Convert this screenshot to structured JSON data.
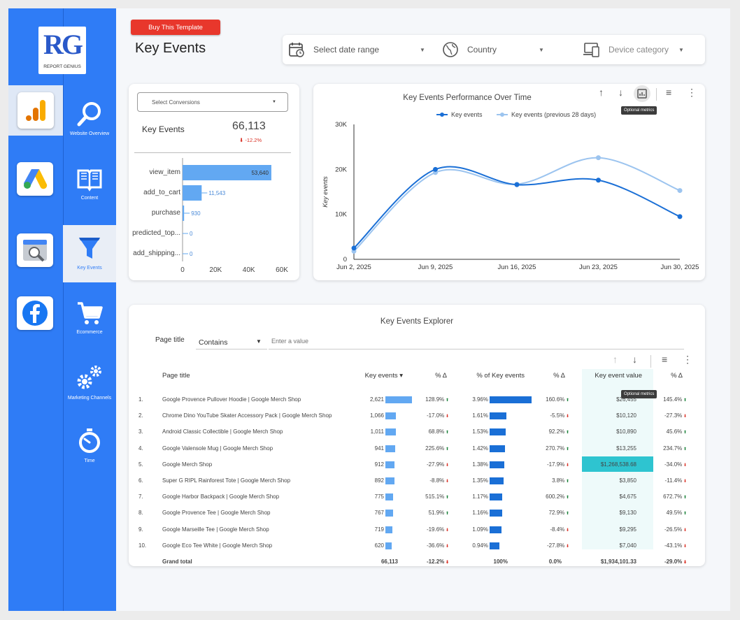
{
  "brand": {
    "logo_text": "RG",
    "name": "REPORT GENIUS"
  },
  "apps": [
    {
      "name": "google-analytics"
    },
    {
      "name": "google-ads"
    },
    {
      "name": "google-search-console"
    },
    {
      "name": "facebook"
    }
  ],
  "nav": [
    {
      "label": "Website Overview",
      "icon": "magnifier-icon"
    },
    {
      "label": "Content",
      "icon": "book-icon"
    },
    {
      "label": "Key Events",
      "icon": "funnel-icon"
    },
    {
      "label": "Ecommerce",
      "icon": "cart-icon"
    },
    {
      "label": "Marketing Channels",
      "icon": "gears-icon"
    },
    {
      "label": "Time",
      "icon": "stopwatch-icon"
    }
  ],
  "header": {
    "buy_label": "Buy This Template",
    "title": "Key Events",
    "filters": {
      "date": "Select date range",
      "country": "Country",
      "device": "Device category"
    }
  },
  "key_events_card": {
    "select_label": "Select Conversions",
    "metric_label": "Key Events",
    "metric_value": "66,113",
    "metric_delta": "-12.2%"
  },
  "line_chart_meta": {
    "title": "Key Events Performance Over Time",
    "tooltip": "Optional metrics"
  },
  "chart_data": [
    {
      "type": "bar",
      "orientation": "horizontal",
      "categories": [
        "view_item",
        "add_to_cart",
        "purchase",
        "predicted_top...",
        "add_shipping..."
      ],
      "values": [
        53640,
        11543,
        930,
        0,
        0
      ],
      "value_labels": [
        "53,640",
        "11,543",
        "930",
        "0",
        "0"
      ],
      "xlim": [
        0,
        60000
      ],
      "xticks": [
        "0",
        "20K",
        "40K",
        "60K"
      ],
      "color": "#62a8f2"
    },
    {
      "type": "line",
      "title": "Key Events Performance Over Time",
      "x": [
        "Jun 2, 2025",
        "Jun 9, 2025",
        "Jun 16, 2025",
        "Jun 23, 2025",
        "Jun 30, 2025"
      ],
      "xticks": [
        "Jun 2, 2025",
        "Jun 9, 2025",
        "Jun 16, 2025",
        "Jun 23, 2025",
        "Jun 30, 2025"
      ],
      "ylabel": "Key events",
      "ylim": [
        0,
        30000
      ],
      "yticks": [
        "0",
        "10K",
        "20K",
        "30K"
      ],
      "series": [
        {
          "name": "Key events",
          "color": "#1a6fd6",
          "values": [
            2500,
            20000,
            16600,
            17600,
            9500
          ]
        },
        {
          "name": "Key events (previous 28 days)",
          "color": "#9cc4ef",
          "values": [
            1800,
            19300,
            16700,
            22600,
            15300
          ]
        }
      ],
      "legend": "top"
    }
  ],
  "explorer": {
    "title": "Key Events Explorer",
    "filter_field": "Page title",
    "filter_op": "Contains",
    "filter_placeholder": "Enter a value",
    "tooltip": "Optional metrics",
    "columns": [
      "Page title",
      "Key events",
      "% Δ",
      "% of Key events",
      "% Δ",
      "Key event value",
      "% Δ"
    ],
    "rows": [
      {
        "n": "1.",
        "title": "Google Provence Pullover Hoodie | Google Merch Shop",
        "ke": "2,621",
        "ke_v": 2621,
        "d1": "128.9%",
        "d1_up": true,
        "pct": "3.96%",
        "pct_v": 3.96,
        "d2": "160.6%",
        "d2_up": true,
        "val": "$26,455",
        "d3": "145.4%",
        "d3_up": true
      },
      {
        "n": "2.",
        "title": "Chrome Dino YouTube Skater Accessory Pack | Google Merch Shop",
        "ke": "1,066",
        "ke_v": 1066,
        "d1": "-17.0%",
        "d1_up": false,
        "pct": "1.61%",
        "pct_v": 1.61,
        "d2": "-5.5%",
        "d2_up": false,
        "val": "$10,120",
        "d3": "-27.3%",
        "d3_up": false
      },
      {
        "n": "3.",
        "title": "Android Classic Collectible | Google Merch Shop",
        "ke": "1,011",
        "ke_v": 1011,
        "d1": "68.8%",
        "d1_up": true,
        "pct": "1.53%",
        "pct_v": 1.53,
        "d2": "92.2%",
        "d2_up": true,
        "val": "$10,890",
        "d3": "45.6%",
        "d3_up": true
      },
      {
        "n": "4.",
        "title": "Google Valensole Mug | Google Merch Shop",
        "ke": "941",
        "ke_v": 941,
        "d1": "225.6%",
        "d1_up": true,
        "pct": "1.42%",
        "pct_v": 1.42,
        "d2": "270.7%",
        "d2_up": true,
        "val": "$13,255",
        "d3": "234.7%",
        "d3_up": true
      },
      {
        "n": "5.",
        "title": "Google Merch Shop",
        "ke": "912",
        "ke_v": 912,
        "d1": "-27.9%",
        "d1_up": false,
        "pct": "1.38%",
        "pct_v": 1.38,
        "d2": "-17.9%",
        "d2_up": false,
        "val": "$1,268,538.68",
        "d3": "-34.0%",
        "d3_up": false,
        "highlight": true
      },
      {
        "n": "6.",
        "title": "Super G RIPL Rainforest Tote | Google Merch Shop",
        "ke": "892",
        "ke_v": 892,
        "d1": "-8.8%",
        "d1_up": false,
        "pct": "1.35%",
        "pct_v": 1.35,
        "d2": "3.8%",
        "d2_up": true,
        "val": "$3,850",
        "d3": "-11.4%",
        "d3_up": false
      },
      {
        "n": "7.",
        "title": "Google Harbor Backpack | Google Merch Shop",
        "ke": "775",
        "ke_v": 775,
        "d1": "515.1%",
        "d1_up": true,
        "pct": "1.17%",
        "pct_v": 1.17,
        "d2": "600.2%",
        "d2_up": true,
        "val": "$4,675",
        "d3": "672.7%",
        "d3_up": true
      },
      {
        "n": "8.",
        "title": "Google Provence Tee | Google Merch Shop",
        "ke": "767",
        "ke_v": 767,
        "d1": "51.9%",
        "d1_up": true,
        "pct": "1.16%",
        "pct_v": 1.16,
        "d2": "72.9%",
        "d2_up": true,
        "val": "$9,130",
        "d3": "49.5%",
        "d3_up": true
      },
      {
        "n": "9.",
        "title": "Google Marseille Tee | Google Merch Shop",
        "ke": "719",
        "ke_v": 719,
        "d1": "-19.6%",
        "d1_up": false,
        "pct": "1.09%",
        "pct_v": 1.09,
        "d2": "-8.4%",
        "d2_up": false,
        "val": "$9,295",
        "d3": "-26.5%",
        "d3_up": false
      },
      {
        "n": "10.",
        "title": "Google Eco Tee White | Google Merch Shop",
        "ke": "620",
        "ke_v": 620,
        "d1": "-36.6%",
        "d1_up": false,
        "pct": "0.94%",
        "pct_v": 0.94,
        "d2": "-27.8%",
        "d2_up": false,
        "val": "$7,040",
        "d3": "-43.1%",
        "d3_up": false
      }
    ],
    "total": {
      "label": "Grand total",
      "ke": "66,113",
      "d1": "-12.2%",
      "pct": "100%",
      "d2": "0.0%",
      "val": "$1,934,101.33",
      "d3": "-29.0%"
    }
  }
}
